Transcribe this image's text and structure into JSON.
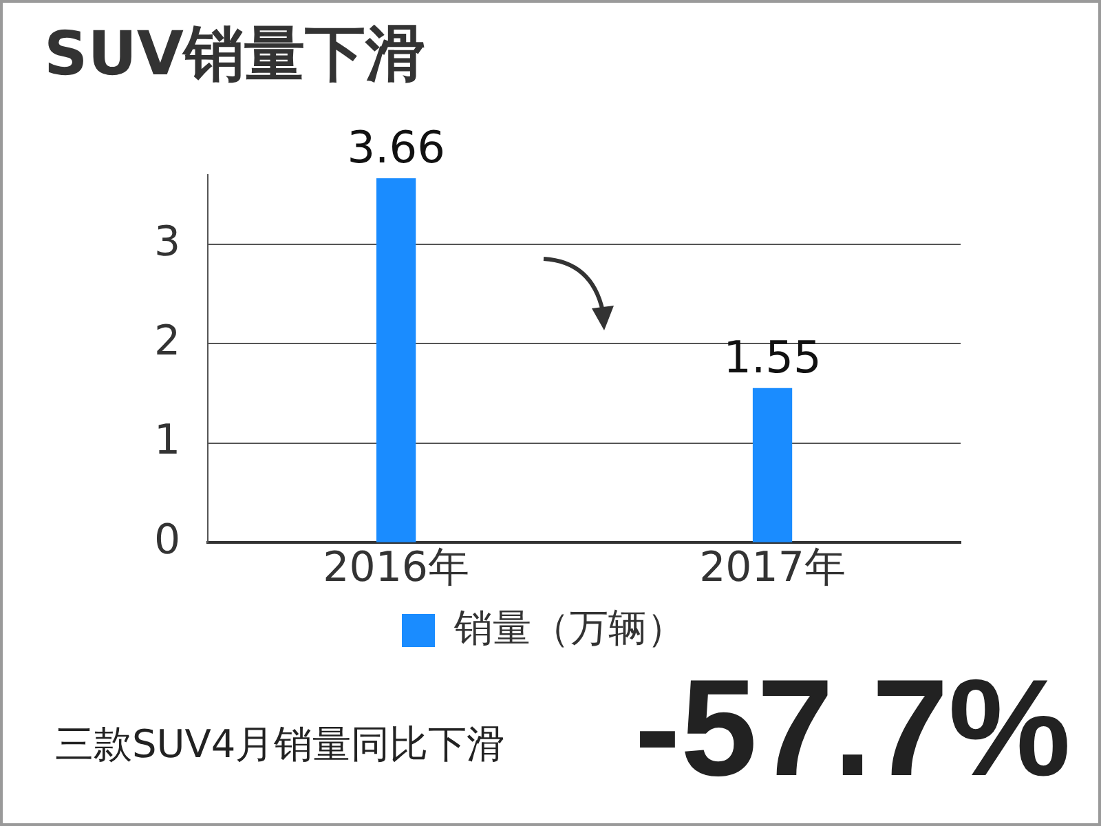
{
  "chart_data": {
    "type": "bar",
    "title": "SUV销量下滑",
    "categories": [
      "2016年",
      "2017年"
    ],
    "series": [
      {
        "name": "销量（万辆）",
        "color": "#1a8cff",
        "values": [
          3.66,
          1.55
        ]
      }
    ],
    "ylim": [
      0,
      3.7
    ],
    "yticks": [
      0,
      1,
      2,
      3
    ],
    "grid": "y",
    "legend": "bottom",
    "data_labels": true,
    "annotations": [
      "三款SUV4月销量同比下滑",
      "-57.7%"
    ]
  }
}
